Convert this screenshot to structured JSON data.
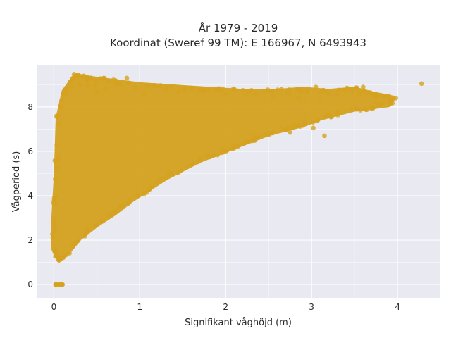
{
  "chart_data": {
    "type": "scatter",
    "title": "År 1979 - 2019",
    "subtitle": "Koordinat (Sweref 99 TM): E 166967, N 6493943",
    "xlabel": "Signifikant våghöjd (m)",
    "ylabel": "Vågperiod (s)",
    "xlim": [
      -0.2,
      4.5
    ],
    "ylim": [
      -0.6,
      9.9
    ],
    "x_ticks": [
      0,
      1,
      2,
      3,
      4
    ],
    "x_tick_labels": [
      "0",
      "1",
      "2",
      "3",
      "4"
    ],
    "y_ticks": [
      0,
      2,
      4,
      6,
      8
    ],
    "y_tick_labels": [
      "0",
      "2",
      "4",
      "6",
      "8"
    ],
    "grid": true,
    "background_color": "#e9e9f1",
    "marker_color": "#d4a21f",
    "legend": "none",
    "point_cloud_outline": [
      [
        0.02,
        0.0
      ],
      [
        0.08,
        0.0
      ],
      [
        0.1,
        0.0
      ],
      [
        0.0,
        1.6
      ],
      [
        0.06,
        1.1
      ],
      [
        0.15,
        1.4
      ],
      [
        0.3,
        2.1
      ],
      [
        0.5,
        2.7
      ],
      [
        0.7,
        3.2
      ],
      [
        0.9,
        3.8
      ],
      [
        1.1,
        4.3
      ],
      [
        1.3,
        4.8
      ],
      [
        1.5,
        5.2
      ],
      [
        1.7,
        5.6
      ],
      [
        1.9,
        5.9
      ],
      [
        2.1,
        6.2
      ],
      [
        2.3,
        6.5
      ],
      [
        2.5,
        6.8
      ],
      [
        2.7,
        7.0
      ],
      [
        2.9,
        7.2
      ],
      [
        3.1,
        7.5
      ],
      [
        3.3,
        7.7
      ],
      [
        3.5,
        7.9
      ],
      [
        3.7,
        8.0
      ],
      [
        3.9,
        8.1
      ],
      [
        3.95,
        8.4
      ],
      [
        3.7,
        8.6
      ],
      [
        3.5,
        8.8
      ],
      [
        3.2,
        8.7
      ],
      [
        2.9,
        8.8
      ],
      [
        2.6,
        8.7
      ],
      [
        2.2,
        8.7
      ],
      [
        1.8,
        8.8
      ],
      [
        1.4,
        8.9
      ],
      [
        1.0,
        9.0
      ],
      [
        0.6,
        9.2
      ],
      [
        0.4,
        9.3
      ],
      [
        0.25,
        9.4
      ],
      [
        0.12,
        8.7
      ],
      [
        0.05,
        7.5
      ],
      [
        0.03,
        5.0
      ],
      [
        0.0,
        3.0
      ]
    ],
    "outliers": [
      [
        4.28,
        9.05
      ],
      [
        3.98,
        8.4
      ],
      [
        3.9,
        8.5
      ],
      [
        3.82,
        8.15
      ],
      [
        3.75,
        8.2
      ],
      [
        3.68,
        8.65
      ],
      [
        3.6,
        8.9
      ],
      [
        3.55,
        8.55
      ],
      [
        3.45,
        8.8
      ],
      [
        3.38,
        8.75
      ],
      [
        3.3,
        8.55
      ],
      [
        3.2,
        8.6
      ],
      [
        3.1,
        8.35
      ],
      [
        3.05,
        8.9
      ],
      [
        2.95,
        8.7
      ],
      [
        2.85,
        8.4
      ],
      [
        2.75,
        8.55
      ],
      [
        2.65,
        8.8
      ],
      [
        2.55,
        8.45
      ],
      [
        2.45,
        8.7
      ],
      [
        2.35,
        8.6
      ],
      [
        2.2,
        8.75
      ],
      [
        2.1,
        8.8
      ],
      [
        2.0,
        8.55
      ],
      [
        1.9,
        8.8
      ],
      [
        1.75,
        8.7
      ],
      [
        1.6,
        8.85
      ],
      [
        1.45,
        8.7
      ],
      [
        1.3,
        8.8
      ],
      [
        1.15,
        8.95
      ],
      [
        1.05,
        8.6
      ],
      [
        0.95,
        8.85
      ],
      [
        0.85,
        9.3
      ],
      [
        0.72,
        9.0
      ],
      [
        0.6,
        8.8
      ],
      [
        0.58,
        9.3
      ],
      [
        0.5,
        8.7
      ],
      [
        0.48,
        9.0
      ],
      [
        0.4,
        9.0
      ],
      [
        0.35,
        9.4
      ],
      [
        0.3,
        9.0
      ],
      [
        0.28,
        9.45
      ],
      [
        0.22,
        8.9
      ],
      [
        0.15,
        8.6
      ],
      [
        3.15,
        6.7
      ],
      [
        3.02,
        7.05
      ],
      [
        2.75,
        6.85
      ],
      [
        0.05,
        0.0
      ],
      [
        0.07,
        0.0
      ],
      [
        0.09,
        0.0
      ],
      [
        0.03,
        0.0
      ]
    ]
  }
}
